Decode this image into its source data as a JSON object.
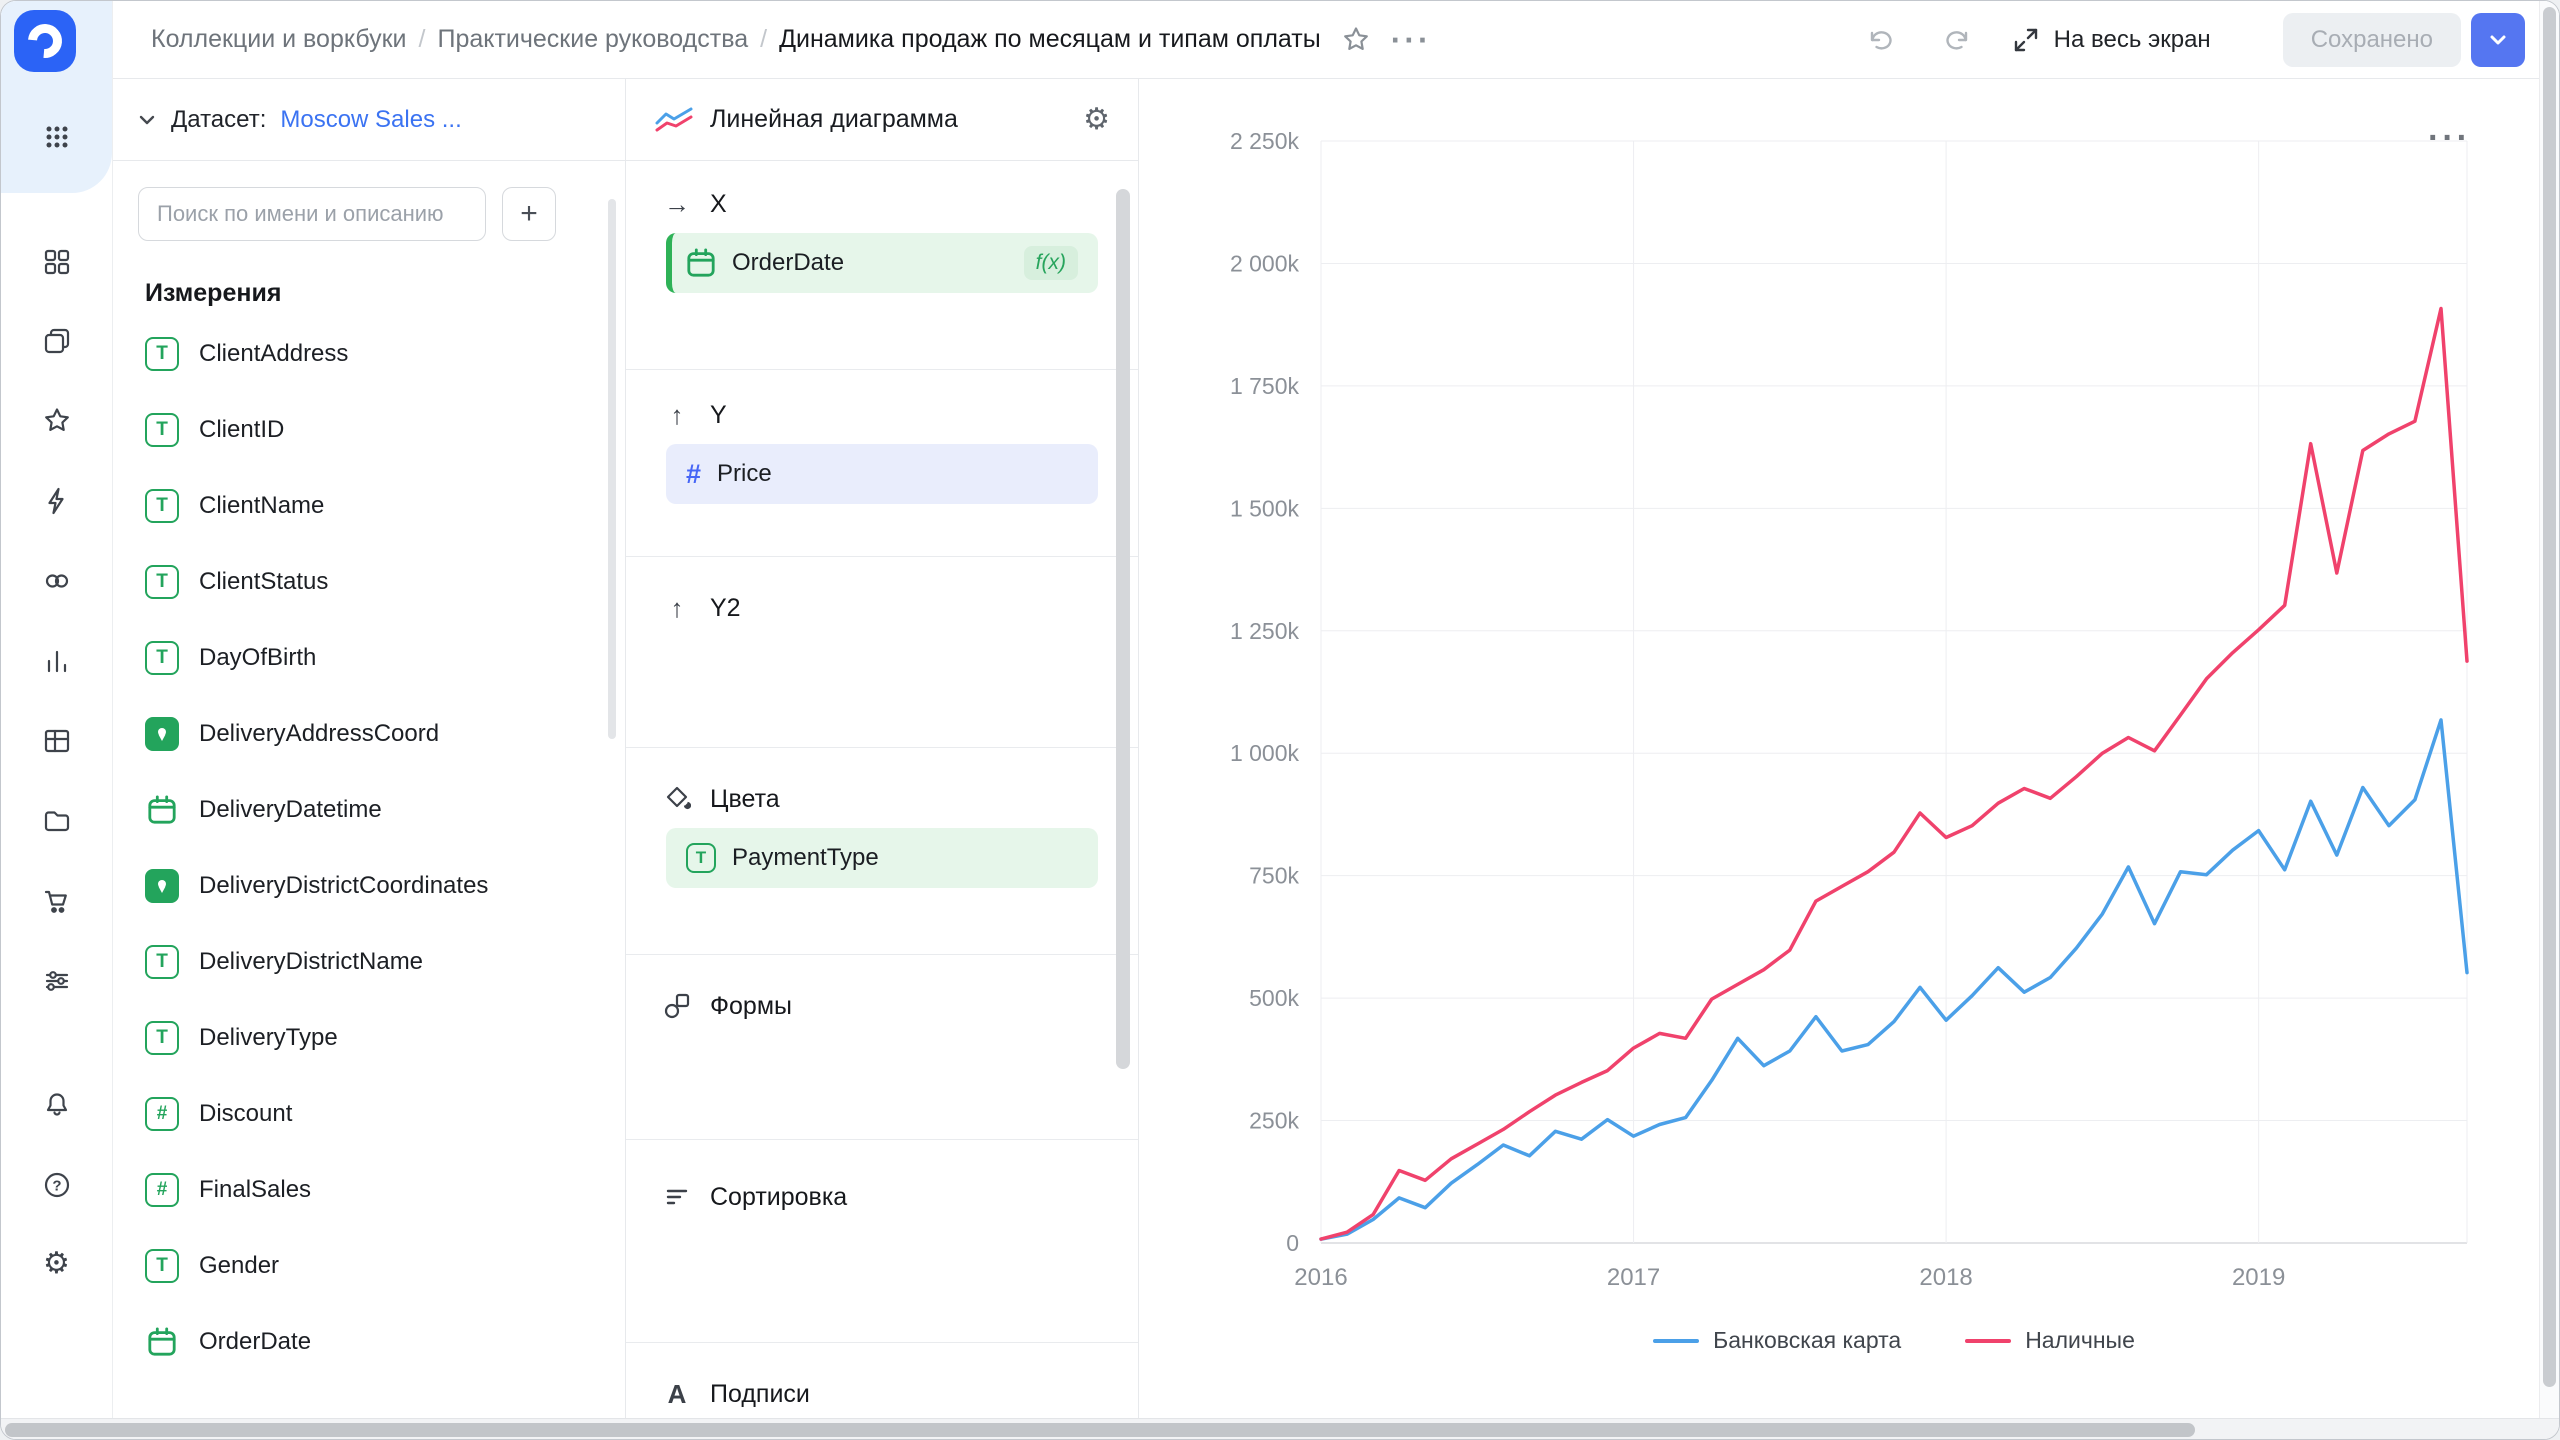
{
  "topbar": {
    "breadcrumbs": [
      "Коллекции и воркбуки",
      "Практические руководства",
      "Динамика продаж по месяцам и типам оплаты"
    ],
    "separator": "/",
    "fullscreen_label": "На весь экран",
    "save_status": "Сохранено"
  },
  "sidebar": {
    "items": [
      {
        "icon": "apps-grid-icon"
      },
      {
        "icon": "widgets-icon"
      },
      {
        "icon": "layers-icon"
      },
      {
        "icon": "star-icon"
      },
      {
        "icon": "lightning-icon"
      },
      {
        "icon": "rings-icon"
      },
      {
        "icon": "bar-chart-icon"
      },
      {
        "icon": "table-icon"
      },
      {
        "icon": "folder-icon"
      },
      {
        "icon": "cart-icon"
      },
      {
        "icon": "flow-icon"
      },
      {
        "icon": "bell-icon"
      },
      {
        "icon": "help-icon"
      },
      {
        "icon": "settings-icon"
      }
    ]
  },
  "dataset_panel": {
    "header_label": "Датасет:",
    "dataset_name": "Moscow Sales ...",
    "search_placeholder": "Поиск по имени и описанию",
    "add_button": "+",
    "section_title": "Измерения",
    "fields": [
      {
        "name": "ClientAddress",
        "type": "text"
      },
      {
        "name": "ClientID",
        "type": "text"
      },
      {
        "name": "ClientName",
        "type": "text"
      },
      {
        "name": "ClientStatus",
        "type": "text"
      },
      {
        "name": "DayOfBirth",
        "type": "text"
      },
      {
        "name": "DeliveryAddressCoord",
        "type": "geopoint"
      },
      {
        "name": "DeliveryDatetime",
        "type": "date"
      },
      {
        "name": "DeliveryDistrictCoordinates",
        "type": "geopoint"
      },
      {
        "name": "DeliveryDistrictName",
        "type": "text"
      },
      {
        "name": "DeliveryType",
        "type": "text"
      },
      {
        "name": "Discount",
        "type": "number"
      },
      {
        "name": "FinalSales",
        "type": "number"
      },
      {
        "name": "Gender",
        "type": "text"
      },
      {
        "name": "OrderDate",
        "type": "date"
      }
    ]
  },
  "chart_config": {
    "chart_type_label": "Линейная диаграмма",
    "sections": {
      "x": {
        "label": "X",
        "field": {
          "name": "OrderDate",
          "type": "date",
          "badge": "f(x)"
        }
      },
      "y": {
        "label": "Y",
        "field": {
          "name": "Price",
          "type": "number"
        }
      },
      "y2": {
        "label": "Y2"
      },
      "colors": {
        "label": "Цвета",
        "field": {
          "name": "PaymentType",
          "type": "text"
        }
      },
      "shapes": {
        "label": "Формы"
      },
      "sorting": {
        "label": "Сортировка"
      },
      "labels": {
        "label": "Подписи"
      }
    }
  },
  "icons": {
    "text_glyph": "T",
    "number_glyph": "#",
    "arrow_right_glyph": "→",
    "arrow_up_glyph": "↑",
    "gear_glyph": "⚙",
    "dots_glyph": "···",
    "label_glyph": "A"
  },
  "colors": {
    "accent_blue": "#3B73F2",
    "primary_button_blue": "#5576F1",
    "series_blue": "#4BA0E8",
    "series_red": "#F0426C",
    "field_icon_green": "#23A45C"
  },
  "chart_data": {
    "type": "line",
    "title": "",
    "xlabel": "",
    "ylabel": "",
    "values_unit": "thousands",
    "ylim": [
      0,
      2250
    ],
    "grid": true,
    "legend_position": "bottom",
    "x": [
      "2016-01",
      "2016-02",
      "2016-03",
      "2016-04",
      "2016-05",
      "2016-06",
      "2016-07",
      "2016-08",
      "2016-09",
      "2016-10",
      "2016-11",
      "2016-12",
      "2017-01",
      "2017-02",
      "2017-03",
      "2017-04",
      "2017-05",
      "2017-06",
      "2017-07",
      "2017-08",
      "2017-09",
      "2017-10",
      "2017-11",
      "2017-12",
      "2018-01",
      "2018-02",
      "2018-03",
      "2018-04",
      "2018-05",
      "2018-06",
      "2018-07",
      "2018-08",
      "2018-09",
      "2018-10",
      "2018-11",
      "2018-12",
      "2019-01",
      "2019-02",
      "2019-03",
      "2019-04",
      "2019-05",
      "2019-06",
      "2019-07",
      "2019-08",
      "2019-09"
    ],
    "x_ticks": [
      {
        "index": 0,
        "label": "2016"
      },
      {
        "index": 12,
        "label": "2017"
      },
      {
        "index": 24,
        "label": "2018"
      },
      {
        "index": 36,
        "label": "2019"
      }
    ],
    "y_ticks": [
      {
        "value": 0,
        "label": "0"
      },
      {
        "value": 250,
        "label": "250k"
      },
      {
        "value": 500,
        "label": "500k"
      },
      {
        "value": 750,
        "label": "750k"
      },
      {
        "value": 1000,
        "label": "1 000k"
      },
      {
        "value": 1250,
        "label": "1 250k"
      },
      {
        "value": 1500,
        "label": "1 500k"
      },
      {
        "value": 1750,
        "label": "1 750k"
      },
      {
        "value": 2000,
        "label": "2 000k"
      },
      {
        "value": 2250,
        "label": "2 250k"
      }
    ],
    "series": [
      {
        "name": "Банковская карта",
        "color": "#4BA0E8",
        "values": [
          8,
          18,
          48,
          92,
          72,
          122,
          160,
          200,
          178,
          228,
          212,
          252,
          218,
          242,
          256,
          332,
          418,
          362,
          392,
          462,
          392,
          405,
          452,
          522,
          455,
          505,
          562,
          512,
          542,
          602,
          672,
          768,
          652,
          758,
          752,
          802,
          842,
          762,
          902,
          792,
          930,
          852,
          905,
          1068,
          552
        ]
      },
      {
        "name": "Наличные",
        "color": "#F0426C",
        "values": [
          8,
          22,
          58,
          148,
          128,
          172,
          202,
          232,
          268,
          302,
          328,
          352,
          398,
          428,
          418,
          498,
          528,
          558,
          598,
          698,
          728,
          758,
          798,
          878,
          828,
          852,
          898,
          928,
          908,
          952,
          1000,
          1032,
          1005,
          1078,
          1152,
          1205,
          1252,
          1302,
          1632,
          1368,
          1618,
          1652,
          1678,
          1908,
          1188
        ]
      }
    ]
  }
}
